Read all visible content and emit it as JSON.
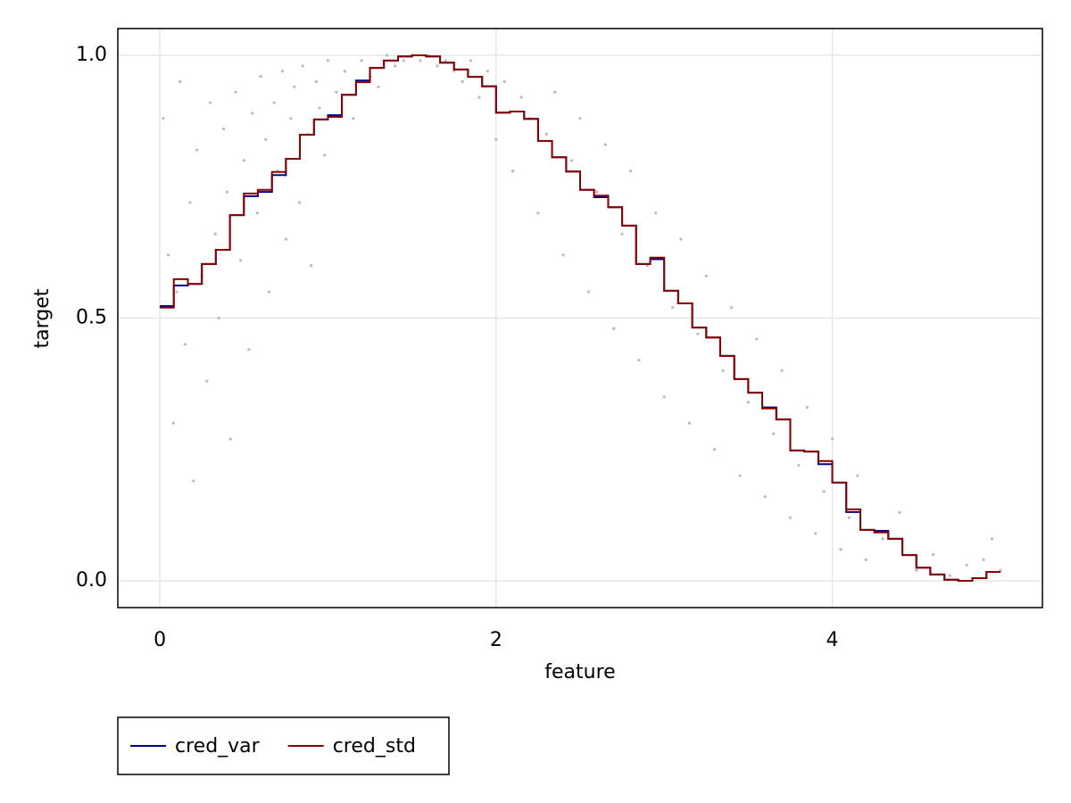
{
  "chart_data": {
    "type": "scatter",
    "x_label": "feature",
    "y_label": "target",
    "xlim": [
      -0.25,
      5.25
    ],
    "ylim": [
      -0.051,
      1.051
    ],
    "xticks": [
      0,
      2,
      4
    ],
    "yticks": [
      {
        "value": 0,
        "label": "0.0"
      },
      {
        "value": 0.5,
        "label": "0.5"
      },
      {
        "value": 1,
        "label": "1.0"
      }
    ],
    "grid": true,
    "legend_position": "bottom",
    "color": "#bbbbbb",
    "x": [
      0.02,
      0.05,
      0.08,
      0.1,
      0.12,
      0.15,
      0.18,
      0.2,
      0.22,
      0.25,
      0.28,
      0.3,
      0.33,
      0.35,
      0.38,
      0.4,
      0.42,
      0.45,
      0.48,
      0.5,
      0.53,
      0.55,
      0.58,
      0.6,
      0.63,
      0.65,
      0.68,
      0.7,
      0.73,
      0.75,
      0.78,
      0.8,
      0.83,
      0.85,
      0.88,
      0.9,
      0.93,
      0.95,
      0.98,
      1.0,
      1.05,
      1.1,
      1.15,
      1.2,
      1.25,
      1.3,
      1.35,
      1.4,
      1.45,
      1.5,
      1.55,
      1.6,
      1.65,
      1.7,
      1.75,
      1.8,
      1.85,
      1.9,
      1.95,
      2.0,
      2.05,
      2.1,
      2.15,
      2.2,
      2.25,
      2.3,
      2.35,
      2.4,
      2.45,
      2.5,
      2.55,
      2.6,
      2.65,
      2.7,
      2.75,
      2.8,
      2.85,
      2.9,
      2.95,
      3.0,
      3.05,
      3.1,
      3.15,
      3.2,
      3.25,
      3.3,
      3.35,
      3.4,
      3.45,
      3.5,
      3.55,
      3.6,
      3.65,
      3.7,
      3.75,
      3.8,
      3.85,
      3.9,
      3.95,
      4.0,
      4.05,
      4.1,
      4.15,
      4.2,
      4.3,
      4.4,
      4.5,
      4.6,
      4.7,
      4.8,
      4.9,
      4.95,
      5.0
    ],
    "y": [
      0.88,
      0.62,
      0.3,
      0.55,
      0.95,
      0.45,
      0.72,
      0.19,
      0.82,
      0.58,
      0.38,
      0.91,
      0.66,
      0.5,
      0.86,
      0.74,
      0.27,
      0.93,
      0.61,
      0.8,
      0.44,
      0.89,
      0.7,
      0.96,
      0.84,
      0.55,
      0.91,
      0.78,
      0.97,
      0.65,
      0.88,
      0.94,
      0.72,
      0.98,
      0.85,
      0.6,
      0.95,
      0.9,
      0.81,
      0.99,
      0.93,
      0.97,
      0.88,
      0.99,
      0.96,
      0.94,
      1.0,
      0.98,
      0.99,
      1.0,
      0.99,
      1.0,
      0.98,
      0.99,
      0.97,
      0.95,
      0.99,
      0.92,
      0.97,
      0.84,
      0.95,
      0.78,
      0.92,
      0.88,
      0.7,
      0.85,
      0.93,
      0.62,
      0.8,
      0.88,
      0.55,
      0.74,
      0.83,
      0.48,
      0.66,
      0.78,
      0.42,
      0.6,
      0.7,
      0.35,
      0.52,
      0.65,
      0.3,
      0.47,
      0.58,
      0.25,
      0.4,
      0.52,
      0.2,
      0.34,
      0.46,
      0.16,
      0.28,
      0.4,
      0.12,
      0.22,
      0.33,
      0.09,
      0.17,
      0.27,
      0.06,
      0.12,
      0.2,
      0.04,
      0.08,
      0.13,
      0.02,
      0.05,
      0.01,
      0.03,
      0.04,
      0.08,
      0.02
    ],
    "series": [
      {
        "name": "cred_var",
        "color": "#00008b",
        "x": [
          0,
          0.083,
          0.167,
          0.25,
          0.333,
          0.417,
          0.5,
          0.583,
          0.667,
          0.75,
          0.833,
          0.917,
          1,
          1.083,
          1.167,
          1.25,
          1.333,
          1.417,
          1.5,
          1.583,
          1.667,
          1.75,
          1.833,
          1.917,
          2,
          2.083,
          2.167,
          2.25,
          2.333,
          2.417,
          2.5,
          2.583,
          2.667,
          2.75,
          2.833,
          2.917,
          3,
          3.083,
          3.167,
          3.25,
          3.333,
          3.417,
          3.5,
          3.583,
          3.667,
          3.75,
          3.833,
          3.917,
          4,
          4.083,
          4.167,
          4.25,
          4.333,
          4.417,
          4.5,
          4.583,
          4.667,
          4.75,
          4.833,
          4.917
        ],
        "values": [
          0.523,
          0.562,
          0.565,
          0.603,
          0.63,
          0.696,
          0.732,
          0.74,
          0.772,
          0.803,
          0.849,
          0.878,
          0.886,
          0.925,
          0.952,
          0.976,
          0.99,
          0.998,
          1.0,
          0.998,
          0.986,
          0.973,
          0.959,
          0.941,
          0.891,
          0.893,
          0.879,
          0.837,
          0.806,
          0.779,
          0.744,
          0.73,
          0.711,
          0.676,
          0.603,
          0.612,
          0.552,
          0.528,
          0.482,
          0.463,
          0.428,
          0.384,
          0.358,
          0.33,
          0.307,
          0.248,
          0.246,
          0.222,
          0.187,
          0.131,
          0.097,
          0.095,
          0.08,
          0.049,
          0.025,
          0.012,
          0.002,
          0.0,
          0.005,
          0.017
        ]
      },
      {
        "name": "cred_std",
        "color": "#8b0000",
        "x": [
          0,
          0.083,
          0.167,
          0.25,
          0.333,
          0.417,
          0.5,
          0.583,
          0.667,
          0.75,
          0.833,
          0.917,
          1,
          1.083,
          1.167,
          1.25,
          1.333,
          1.417,
          1.5,
          1.583,
          1.667,
          1.75,
          1.833,
          1.917,
          2,
          2.083,
          2.167,
          2.25,
          2.333,
          2.417,
          2.5,
          2.583,
          2.667,
          2.75,
          2.833,
          2.917,
          3,
          3.083,
          3.167,
          3.25,
          3.333,
          3.417,
          3.5,
          3.583,
          3.667,
          3.75,
          3.833,
          3.917,
          4,
          4.083,
          4.167,
          4.25,
          4.333,
          4.417,
          4.5,
          4.583,
          4.667,
          4.75,
          4.833,
          4.917
        ],
        "values": [
          0.52,
          0.574,
          0.565,
          0.603,
          0.63,
          0.696,
          0.737,
          0.744,
          0.778,
          0.803,
          0.849,
          0.878,
          0.883,
          0.925,
          0.949,
          0.976,
          0.99,
          0.998,
          1.0,
          0.998,
          0.986,
          0.973,
          0.959,
          0.941,
          0.891,
          0.893,
          0.879,
          0.837,
          0.806,
          0.779,
          0.744,
          0.733,
          0.711,
          0.676,
          0.603,
          0.615,
          0.552,
          0.528,
          0.482,
          0.463,
          0.428,
          0.384,
          0.358,
          0.328,
          0.307,
          0.248,
          0.246,
          0.228,
          0.187,
          0.136,
          0.097,
          0.092,
          0.08,
          0.049,
          0.025,
          0.012,
          0.002,
          0.0,
          0.005,
          0.017
        ]
      }
    ]
  }
}
